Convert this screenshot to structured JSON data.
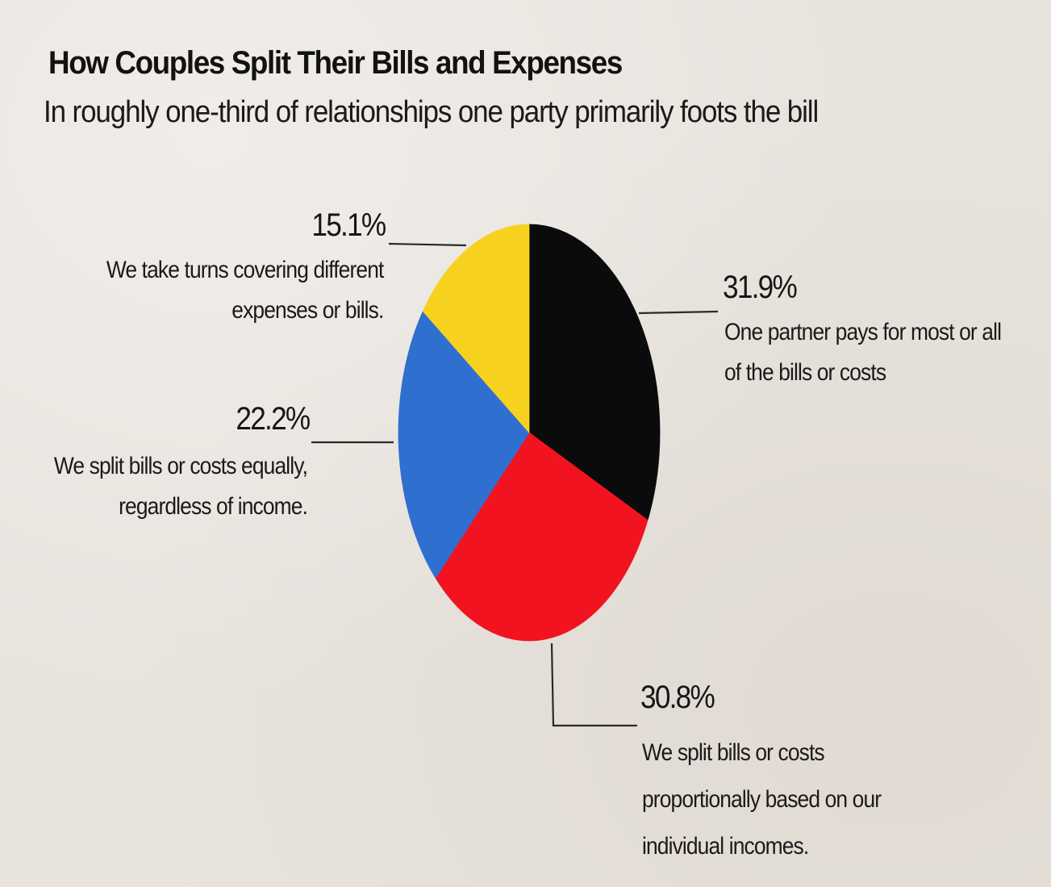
{
  "chart_data": {
    "type": "pie",
    "title": "How Couples Split Their Bills and Expenses",
    "subtitle": "In roughly one-third of relationships one party primarily foots the bill",
    "slices": [
      {
        "id": "black",
        "value": 31.9,
        "label": "31.9%",
        "description": [
          "One partner pays for most or all",
          "of the bills or costs"
        ],
        "color": "#0b0b0b"
      },
      {
        "id": "red",
        "value": 30.8,
        "label": "30.8%",
        "description": [
          "We split bills or costs",
          "proportionally based on our",
          "individual incomes."
        ],
        "color": "#f21320"
      },
      {
        "id": "blue",
        "value": 22.2,
        "label": "22.2%",
        "description": [
          "We split bills or costs equally,",
          "regardless of income."
        ],
        "color": "#2f6fd0"
      },
      {
        "id": "yellow",
        "value": 15.1,
        "label": "15.1%",
        "description": [
          "We take turns covering different",
          "expenses or bills."
        ],
        "color": "#f6d21f"
      }
    ],
    "start_angle_deg": 0,
    "direction": "clockwise"
  }
}
